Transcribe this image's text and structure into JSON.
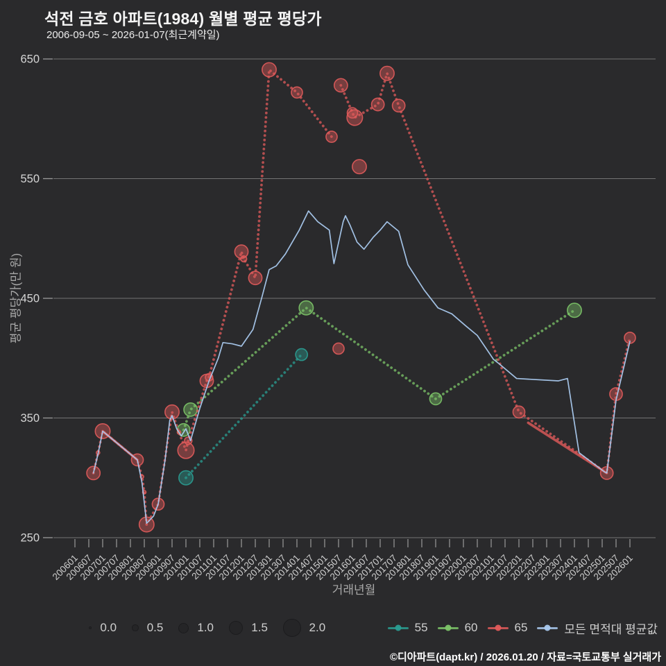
{
  "title": "석전 금호 아파트(1984) 월별 평균 평당가",
  "subtitle": "2006-09-05 ~ 2026-01-07(최근계약일)",
  "footer": "©디아파트(dapt.kr) / 2026.01.20 / 자료=국토교통부 실거래가",
  "colors": {
    "background": "#2a2a2c",
    "gridline": "#828282",
    "tick_label": "#cfcfcf",
    "axis_title": "#a9a9a9",
    "series_55": "#2a9d92",
    "series_60": "#7cc468",
    "series_65": "#e15b5b",
    "series_avg": "#a9c9ee"
  },
  "size_legend": {
    "labels": [
      "0.0",
      "0.5",
      "1.0",
      "1.5",
      "2.0"
    ],
    "values": [
      0.0,
      0.5,
      1.0,
      1.5,
      2.0
    ]
  },
  "chart_data": {
    "type": "scatter",
    "title": "석전 금호 아파트(1984) 월별 평균 평당가",
    "x_axis": {
      "label": "거래년월",
      "tick_labels": [
        "200601",
        "200607",
        "200701",
        "200707",
        "200801",
        "200807",
        "200901",
        "200907",
        "201001",
        "201007",
        "201101",
        "201107",
        "201201",
        "201207",
        "201301",
        "201307",
        "201401",
        "201407",
        "201501",
        "201507",
        "201601",
        "201607",
        "201701",
        "201707",
        "201801",
        "201807",
        "201901",
        "201907",
        "202001",
        "202007",
        "202101",
        "202107",
        "202201",
        "202207",
        "202301",
        "202307",
        "202401",
        "202407",
        "202501",
        "202507",
        "202601"
      ]
    },
    "y_axis": {
      "label": "평균 평당가(만 원)",
      "ticks": [
        250,
        350,
        450,
        550,
        650
      ],
      "min": 250,
      "max": 650
    },
    "legend_position": "bottom",
    "grid": "horizontal-only",
    "series": [
      {
        "name": "55",
        "type": "bubble-trail",
        "color": "#2a9d92",
        "segments": [
          [
            [
              201001,
              300,
              1.5
            ],
            [
              201403,
              403,
              1.2
            ]
          ]
        ],
        "solid_segments": []
      },
      {
        "name": "60",
        "type": "bubble-trail",
        "color": "#7cc468",
        "segments": [
          [
            [
              200912,
              340,
              1.3
            ],
            [
              201003,
              357,
              1.4
            ],
            [
              201405,
              442,
              1.5
            ],
            [
              201901,
              366,
              1.2
            ],
            [
              202401,
              440,
              1.5
            ]
          ]
        ],
        "solid_segments": []
      },
      {
        "name": "65",
        "type": "bubble-trail",
        "color": "#e15b5b",
        "segments": [
          [
            [
              200609,
              304,
              1.4
            ],
            [
              200611,
              321,
              0.05
            ],
            [
              200701,
              339,
              1.6
            ],
            [
              200804,
              315,
              1.2
            ],
            [
              200806,
              301,
              0.05
            ],
            [
              200807,
              288,
              0.05
            ],
            [
              200808,
              261,
              1.6
            ],
            [
              200901,
              278,
              1.2
            ],
            [
              200907,
              355,
              1.5
            ],
            [
              200910,
              338,
              0.05
            ],
            [
              201001,
              323,
              1.8
            ],
            [
              201002,
              331,
              0.6
            ],
            [
              201010,
              381,
              1.4
            ],
            [
              201011,
              384,
              0.6
            ],
            [
              201201,
              489,
              1.4
            ],
            [
              201202,
              483,
              0.4
            ],
            [
              201207,
              467,
              1.4
            ],
            [
              201301,
              641,
              1.5
            ],
            [
              201401,
              622,
              1.1
            ],
            [
              201504,
              585,
              1.1
            ]
          ],
          [
            [
              201507,
              408,
              1.1
            ]
          ],
          [
            [
              201508,
              628,
              1.4
            ],
            [
              201601,
              605,
              1.0
            ],
            [
              201602,
              601,
              1.7
            ],
            [
              201612,
              612,
              1.3
            ],
            [
              201704,
              638,
              1.5
            ],
            [
              201709,
              611,
              1.3
            ],
            [
              202201,
              355,
              1.2
            ],
            [
              202503,
              304,
              1.3
            ],
            [
              202507,
              370,
              1.3
            ],
            [
              202601,
              417,
              1.1
            ]
          ],
          [
            [
              201604,
              560,
              1.5
            ]
          ]
        ],
        "solid_segments": [
          [
            [
              200701,
              339
            ],
            [
              200804,
              315
            ]
          ],
          [
            [
              202205,
              346
            ],
            [
              202503,
              304
            ]
          ]
        ]
      },
      {
        "name": "모든 면적대 평균값",
        "type": "line",
        "color": "#a9c9ee",
        "points": [
          [
            200609,
            304
          ],
          [
            200611,
            320
          ],
          [
            200701,
            339
          ],
          [
            200804,
            315
          ],
          [
            200806,
            296
          ],
          [
            200808,
            262
          ],
          [
            200811,
            268
          ],
          [
            200901,
            278
          ],
          [
            200904,
            315
          ],
          [
            200906,
            348
          ],
          [
            200907,
            352
          ],
          [
            200909,
            341
          ],
          [
            200911,
            335
          ],
          [
            201001,
            341
          ],
          [
            201003,
            331
          ],
          [
            201007,
            358
          ],
          [
            201011,
            381
          ],
          [
            201103,
            400
          ],
          [
            201105,
            413
          ],
          [
            201109,
            412
          ],
          [
            201201,
            410
          ],
          [
            201206,
            424
          ],
          [
            201210,
            452
          ],
          [
            201301,
            474
          ],
          [
            201304,
            477
          ],
          [
            201308,
            487
          ],
          [
            201402,
            507
          ],
          [
            201406,
            523
          ],
          [
            201410,
            514
          ],
          [
            201503,
            507
          ],
          [
            201505,
            479
          ],
          [
            201509,
            514
          ],
          [
            201510,
            519
          ],
          [
            201512,
            511
          ],
          [
            201603,
            497
          ],
          [
            201606,
            491
          ],
          [
            201610,
            501
          ],
          [
            201701,
            507
          ],
          [
            201704,
            514
          ],
          [
            201709,
            506
          ],
          [
            201801,
            478
          ],
          [
            201808,
            457
          ],
          [
            201902,
            442
          ],
          [
            201908,
            437
          ],
          [
            202002,
            427
          ],
          [
            202007,
            419
          ],
          [
            202102,
            399
          ],
          [
            202104,
            396
          ],
          [
            202112,
            383
          ],
          [
            202306,
            381
          ],
          [
            202310,
            383
          ],
          [
            202403,
            321
          ],
          [
            202502,
            305
          ],
          [
            202503,
            304
          ],
          [
            202507,
            365
          ],
          [
            202601,
            414
          ]
        ]
      }
    ]
  }
}
